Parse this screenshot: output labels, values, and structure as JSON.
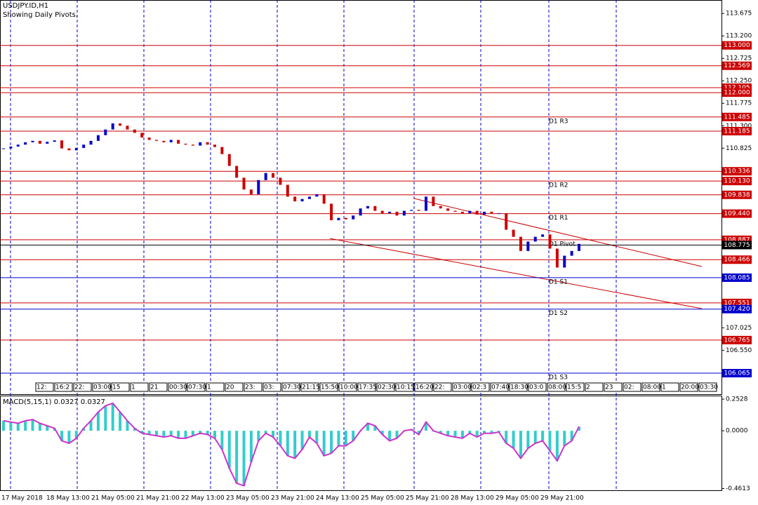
{
  "chart_data": [
    {
      "type": "candlestick",
      "title": "USDJPY.ID,H1",
      "subtitle": "Showing Daily Pivots.",
      "up_color": "#0000cc",
      "down_color": "#cc0000",
      "values": [
        110.82,
        110.86,
        110.9,
        110.95,
        110.98,
        110.92,
        110.96,
        110.99,
        110.82,
        110.78,
        110.83,
        110.9,
        110.98,
        111.1,
        111.22,
        111.35,
        111.3,
        111.22,
        111.15,
        111.05,
        111.0,
        110.98,
        110.95,
        111.0,
        110.92,
        110.9,
        110.88,
        110.95,
        110.9,
        110.85,
        110.7,
        110.45,
        110.2,
        109.95,
        109.85,
        110.15,
        110.3,
        110.2,
        110.05,
        109.8,
        109.7,
        109.75,
        109.8,
        109.85,
        109.65,
        109.3,
        109.35,
        109.32,
        109.4,
        109.55,
        109.6,
        109.5,
        109.45,
        109.48,
        109.4,
        109.5,
        109.52,
        109.5,
        109.8,
        109.6,
        109.55,
        109.5,
        109.48,
        109.45,
        109.5,
        109.42,
        109.48,
        109.45,
        109.45,
        109.1,
        108.95,
        108.65,
        108.85,
        108.95,
        109.0,
        108.7,
        108.3,
        108.55,
        108.65,
        108.8
      ],
      "ylim": [
        105.65,
        113.96
      ],
      "yticks": [
        113.675,
        {
          "value": 113.2,
          "label": "113.200"
        },
        112.725,
        {
          "value": 112.25,
          "label": "112.250"
        },
        111.775,
        {
          "value": 111.3,
          "label": "111.300"
        },
        110.825,
        107.025,
        {
          "value": 106.55,
          "label": "106.550"
        }
      ],
      "levels": [
        {
          "value": 113.0,
          "label": "113.000",
          "color": "#cc0000"
        },
        {
          "value": 112.569,
          "label": "112.569",
          "color": "#cc0000"
        },
        {
          "value": 112.105,
          "label": "112.105",
          "color": "#cc0000"
        },
        {
          "value": 112.0,
          "label": "112.000",
          "color": "#cc0000"
        },
        {
          "value": 111.485,
          "label": "111.485",
          "color": "#cc0000"
        },
        {
          "value": 111.185,
          "label": "111.185",
          "color": "#cc0000"
        },
        {
          "value": 110.336,
          "label": "110.336",
          "color": "#cc0000"
        },
        {
          "value": 110.13,
          "label": "110.130",
          "color": "#cc0000"
        },
        {
          "value": 109.838,
          "label": "109.838",
          "color": "#cc0000"
        },
        {
          "value": 109.44,
          "label": "109.440",
          "color": "#cc0000"
        },
        {
          "value": 108.887,
          "label": "108.887",
          "color": "#cc0000"
        },
        {
          "value": 108.775,
          "label": "108.775",
          "color": "#000000"
        },
        {
          "value": 108.466,
          "label": "108.466",
          "color": "#cc0000"
        },
        {
          "value": 108.085,
          "label": "108.085",
          "color": "#0000cc"
        },
        {
          "value": 107.551,
          "label": "107.551",
          "color": "#cc0000"
        },
        {
          "value": 107.42,
          "label": "107.420",
          "color": "#0000cc"
        },
        {
          "value": 106.765,
          "label": "106.765",
          "color": "#cc0000"
        },
        {
          "value": 106.065,
          "label": "106.065",
          "color": "#0000cc"
        }
      ],
      "pivots": [
        {
          "name": "D1 R3",
          "value": 111.485
        },
        {
          "name": "D1 R2",
          "value": 110.13
        },
        {
          "name": "D1 R1",
          "value": 109.44
        },
        {
          "name": "D1 Pivot",
          "value": 108.887
        },
        {
          "name": "D1 S1",
          "value": 108.085
        },
        {
          "name": "D1 S2",
          "value": 107.42
        },
        {
          "name": "D1 S3",
          "value": 106.065
        }
      ],
      "time_tags": [
        "12:",
        "16:2",
        "22:",
        "03:00",
        "15",
        "1",
        "21",
        "00:30",
        "07:30",
        "1",
        "20",
        "23:",
        "03:",
        "07:30",
        "21:15",
        "15:50",
        "10:00",
        "17:35",
        "02:30",
        "10:15",
        "16:20",
        "22:",
        "03:00",
        "02:3",
        "07:40",
        "18:30",
        "03:0",
        "08:00",
        "15:5",
        "2",
        "23",
        "02:",
        "08:00",
        "1",
        "20:00",
        "03:30"
      ],
      "date_labels": [
        "17 May 2018",
        "18 May 13:00",
        "21 May 05:00",
        "21 May 21:00",
        "22 May 13:00",
        "23 May 05:00",
        "23 May 21:00",
        "24 May 13:00",
        "25 May 05:00",
        "25 May 21:00",
        "28 May 13:00",
        "29 May 05:00",
        "29 May 21:00"
      ]
    },
    {
      "type": "macd",
      "title": "MACD(5,15,1) 0.0327 0.0327",
      "color": "#33cccc",
      "signal_color": "#cc33cc",
      "values": [
        0.08,
        0.07,
        0.06,
        0.08,
        0.09,
        0.06,
        0.04,
        0.02,
        -0.08,
        -0.1,
        -0.06,
        0.02,
        0.08,
        0.15,
        0.2,
        0.22,
        0.15,
        0.08,
        0.02,
        -0.02,
        -0.03,
        -0.04,
        -0.05,
        -0.04,
        -0.06,
        -0.06,
        -0.04,
        -0.02,
        -0.03,
        -0.06,
        -0.15,
        -0.3,
        -0.42,
        -0.44,
        -0.25,
        -0.08,
        -0.02,
        -0.05,
        -0.12,
        -0.2,
        -0.22,
        -0.15,
        -0.05,
        -0.1,
        -0.2,
        -0.18,
        -0.12,
        -0.12,
        -0.08,
        0.0,
        0.06,
        0.04,
        -0.03,
        -0.08,
        -0.06,
        0.0,
        0.01,
        -0.03,
        0.07,
        0.0,
        -0.02,
        -0.04,
        -0.05,
        -0.06,
        -0.02,
        -0.05,
        -0.02,
        -0.02,
        -0.01,
        -0.1,
        -0.14,
        -0.22,
        -0.14,
        -0.1,
        -0.08,
        -0.16,
        -0.24,
        -0.12,
        -0.08,
        0.0327
      ],
      "ylim": [
        -0.47,
        0.27
      ],
      "yticks": [
        0.2528,
        {
          "value": 0,
          "label": "0.0000"
        },
        -0.4613
      ]
    }
  ]
}
